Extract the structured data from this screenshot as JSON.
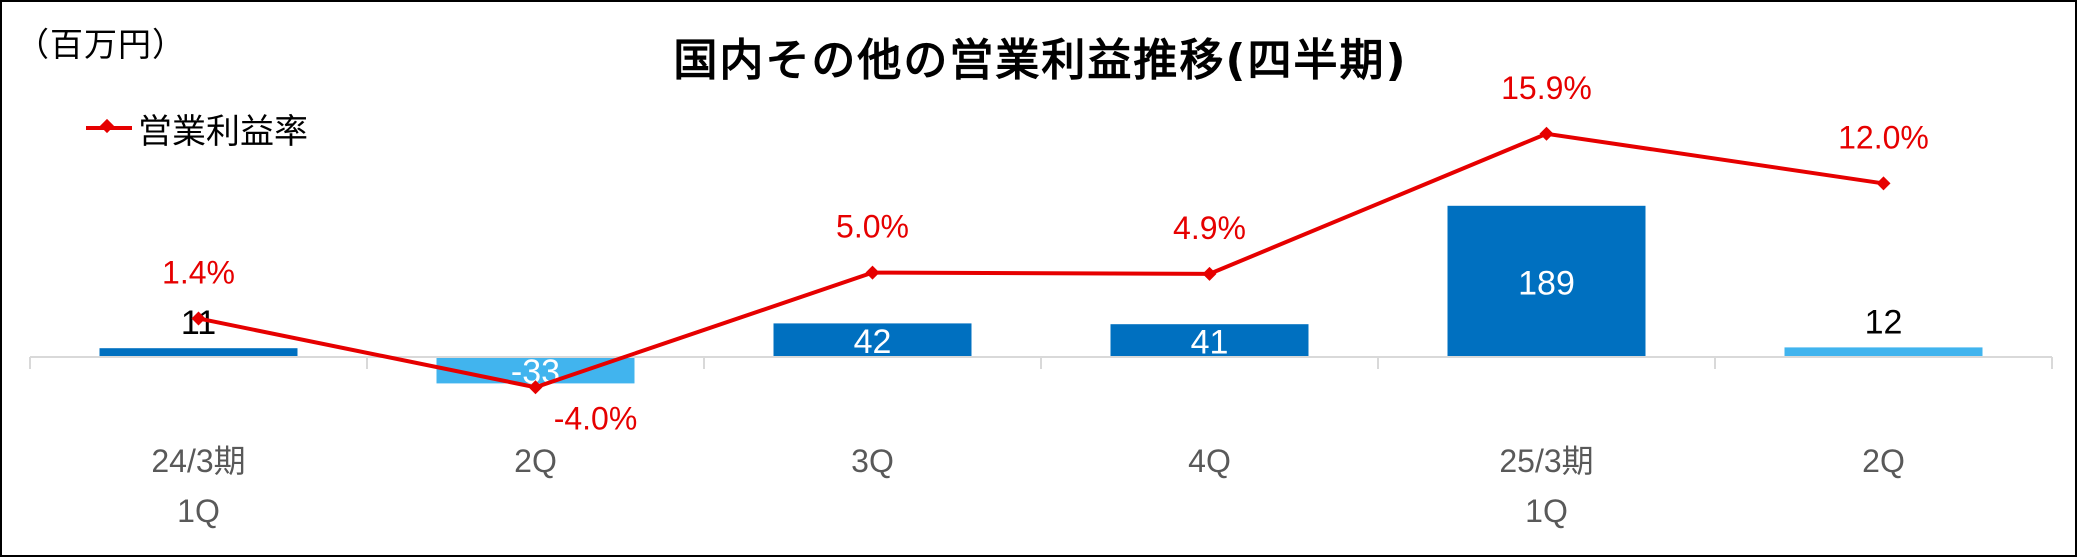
{
  "unit_label": "（百万円）",
  "chart_data": {
    "type": "bar+line",
    "title": "国内その他の営業利益推移(四半期)",
    "categories": [
      [
        "24/3期",
        "1Q"
      ],
      [
        "2Q"
      ],
      [
        "3Q"
      ],
      [
        "4Q"
      ],
      [
        "25/3期",
        "1Q"
      ],
      [
        "2Q"
      ]
    ],
    "bars": {
      "values": [
        11,
        -33,
        42,
        41,
        189,
        12
      ],
      "labels": [
        "11",
        "-33",
        "42",
        "41",
        "189",
        "12"
      ],
      "colors": [
        "#0070c0",
        "#41b4ee",
        "#0070c0",
        "#0070c0",
        "#0070c0",
        "#41b4ee"
      ],
      "label_colors": [
        "#000000",
        "#ffffff",
        "#ffffff",
        "#ffffff",
        "#ffffff",
        "#000000"
      ],
      "label_position": [
        "above",
        "inside",
        "inside",
        "inside",
        "inside",
        "above"
      ]
    },
    "line": {
      "name": "営業利益率",
      "values": [
        1.4,
        -4.0,
        5.0,
        4.9,
        15.9,
        12.0
      ],
      "labels": [
        "1.4%",
        "-4.0%",
        "5.0%",
        "4.9%",
        "15.9%",
        "12.0%"
      ],
      "label_position": [
        "above",
        "below",
        "above",
        "above",
        "above",
        "above"
      ],
      "color": "#e60000"
    },
    "bar_axis_range": [
      -40,
      210
    ],
    "line_axis_range": [
      -5,
      18
    ],
    "legend_position": "top-left",
    "gridlines": false
  }
}
